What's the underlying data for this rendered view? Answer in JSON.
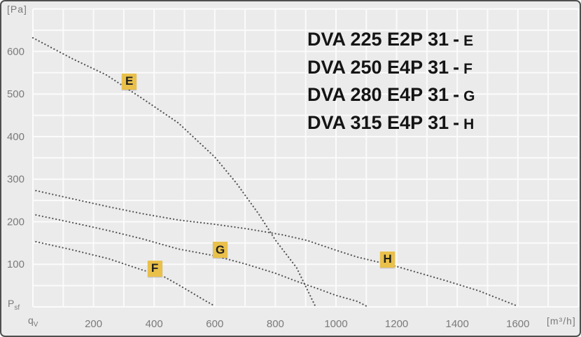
{
  "chart_data": {
    "type": "line",
    "title": "",
    "xlabel": "qV [m³/h]",
    "ylabel": "Psf [Pa]",
    "xlim": [
      0,
      1800
    ],
    "ylim": [
      0,
      700
    ],
    "grid": true,
    "x_axis": {
      "unit": "[m³/h]",
      "quantity_base": "q",
      "quantity_sub": "V",
      "min": 0,
      "max": 1800,
      "grid_step": 100,
      "ticks": [
        200,
        400,
        600,
        800,
        1000,
        1200,
        1400,
        1600
      ]
    },
    "y_axis": {
      "unit": "[Pa]",
      "quantity_base": "P",
      "quantity_sub": "sf",
      "min": 0,
      "max": 700,
      "grid_step": 50,
      "ticks": [
        100,
        200,
        300,
        400,
        500,
        600
      ]
    },
    "curves": [
      {
        "name": "E",
        "model": "DVA 225 E2P 31",
        "style": "dotted",
        "label_at": {
          "q": 318,
          "p": 529
        },
        "points": [
          [
            0,
            632
          ],
          [
            130,
            583
          ],
          [
            242,
            545
          ],
          [
            360,
            490
          ],
          [
            480,
            432
          ],
          [
            600,
            352
          ],
          [
            670,
            292
          ],
          [
            745,
            218
          ],
          [
            800,
            157
          ],
          [
            870,
            92
          ],
          [
            930,
            4
          ]
        ]
      },
      {
        "name": "F",
        "model": "DVA 250 E4P 31",
        "style": "dotted",
        "label_at": {
          "q": 402,
          "p": 89
        },
        "points": [
          [
            10,
            153
          ],
          [
            130,
            134
          ],
          [
            250,
            113
          ],
          [
            355,
            88
          ],
          [
            430,
            72
          ],
          [
            480,
            52
          ],
          [
            530,
            31
          ],
          [
            570,
            14
          ],
          [
            600,
            2
          ]
        ]
      },
      {
        "name": "G",
        "model": "DVA 280 E4P 31",
        "style": "dotted",
        "label_at": {
          "q": 618,
          "p": 133
        },
        "points": [
          [
            10,
            216
          ],
          [
            130,
            198
          ],
          [
            250,
            179
          ],
          [
            360,
            160
          ],
          [
            480,
            136
          ],
          [
            600,
            120
          ],
          [
            700,
            101
          ],
          [
            800,
            79
          ],
          [
            870,
            60
          ],
          [
            935,
            44
          ],
          [
            1000,
            27
          ],
          [
            1070,
            13
          ],
          [
            1100,
            2
          ]
        ]
      },
      {
        "name": "H",
        "model": "DVA 315 E4P 31",
        "style": "dotted",
        "label_at": {
          "q": 1170,
          "p": 111
        },
        "points": [
          [
            10,
            273
          ],
          [
            130,
            254
          ],
          [
            250,
            235
          ],
          [
            360,
            219
          ],
          [
            480,
            204
          ],
          [
            600,
            194
          ],
          [
            710,
            183
          ],
          [
            825,
            169
          ],
          [
            905,
            156
          ],
          [
            1000,
            133
          ],
          [
            1070,
            117
          ],
          [
            1200,
            95
          ],
          [
            1360,
            62
          ],
          [
            1470,
            38
          ],
          [
            1595,
            3
          ]
        ]
      }
    ],
    "style": {
      "bg_color": "#ebebeb",
      "grid_color": "#fbfbfb",
      "dot_color": "#545454",
      "axis_text_color": "#7a7a7a",
      "legend_text_color": "#141414",
      "label_box_color": "#e9c04a",
      "label_text_color": "#1f1f1f",
      "border_color": "#4f4f4f"
    }
  },
  "legend": {
    "separator": "-",
    "items": [
      {
        "model": "DVA 225 E2P 31",
        "code": "E"
      },
      {
        "model": "DVA 250 E4P 31",
        "code": "F"
      },
      {
        "model": "DVA 280 E4P 31",
        "code": "G"
      },
      {
        "model": "DVA 315 E4P 31",
        "code": "H"
      }
    ]
  }
}
